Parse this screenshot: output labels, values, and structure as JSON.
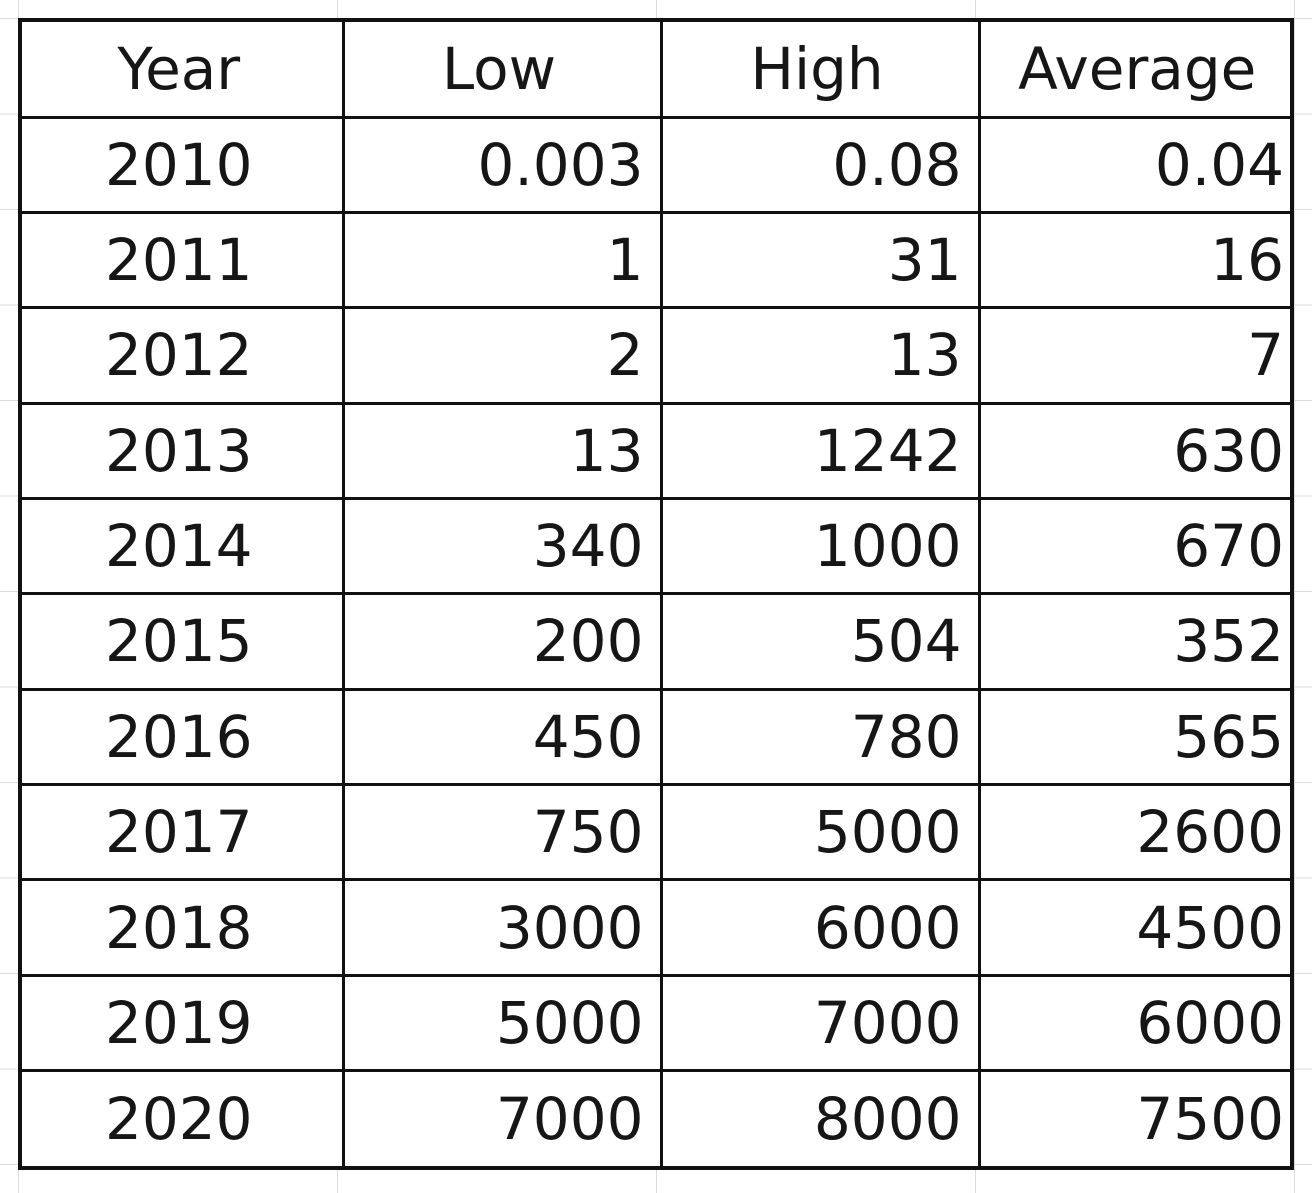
{
  "table": {
    "headers": [
      "Year",
      "Low",
      "High",
      "Average"
    ],
    "rows": [
      [
        "2010",
        "0.003",
        "0.08",
        "0.04"
      ],
      [
        "2011",
        "1",
        "31",
        "16"
      ],
      [
        "2012",
        "2",
        "13",
        "7"
      ],
      [
        "2013",
        "13",
        "1242",
        "630"
      ],
      [
        "2014",
        "340",
        "1000",
        "670"
      ],
      [
        "2015",
        "200",
        "504",
        "352"
      ],
      [
        "2016",
        "450",
        "780",
        "565"
      ],
      [
        "2017",
        "750",
        "5000",
        "2600"
      ],
      [
        "2018",
        "3000",
        "6000",
        "4500"
      ],
      [
        "2019",
        "5000",
        "7000",
        "6000"
      ],
      [
        "2020",
        "7000",
        "8000",
        "7500"
      ]
    ]
  }
}
